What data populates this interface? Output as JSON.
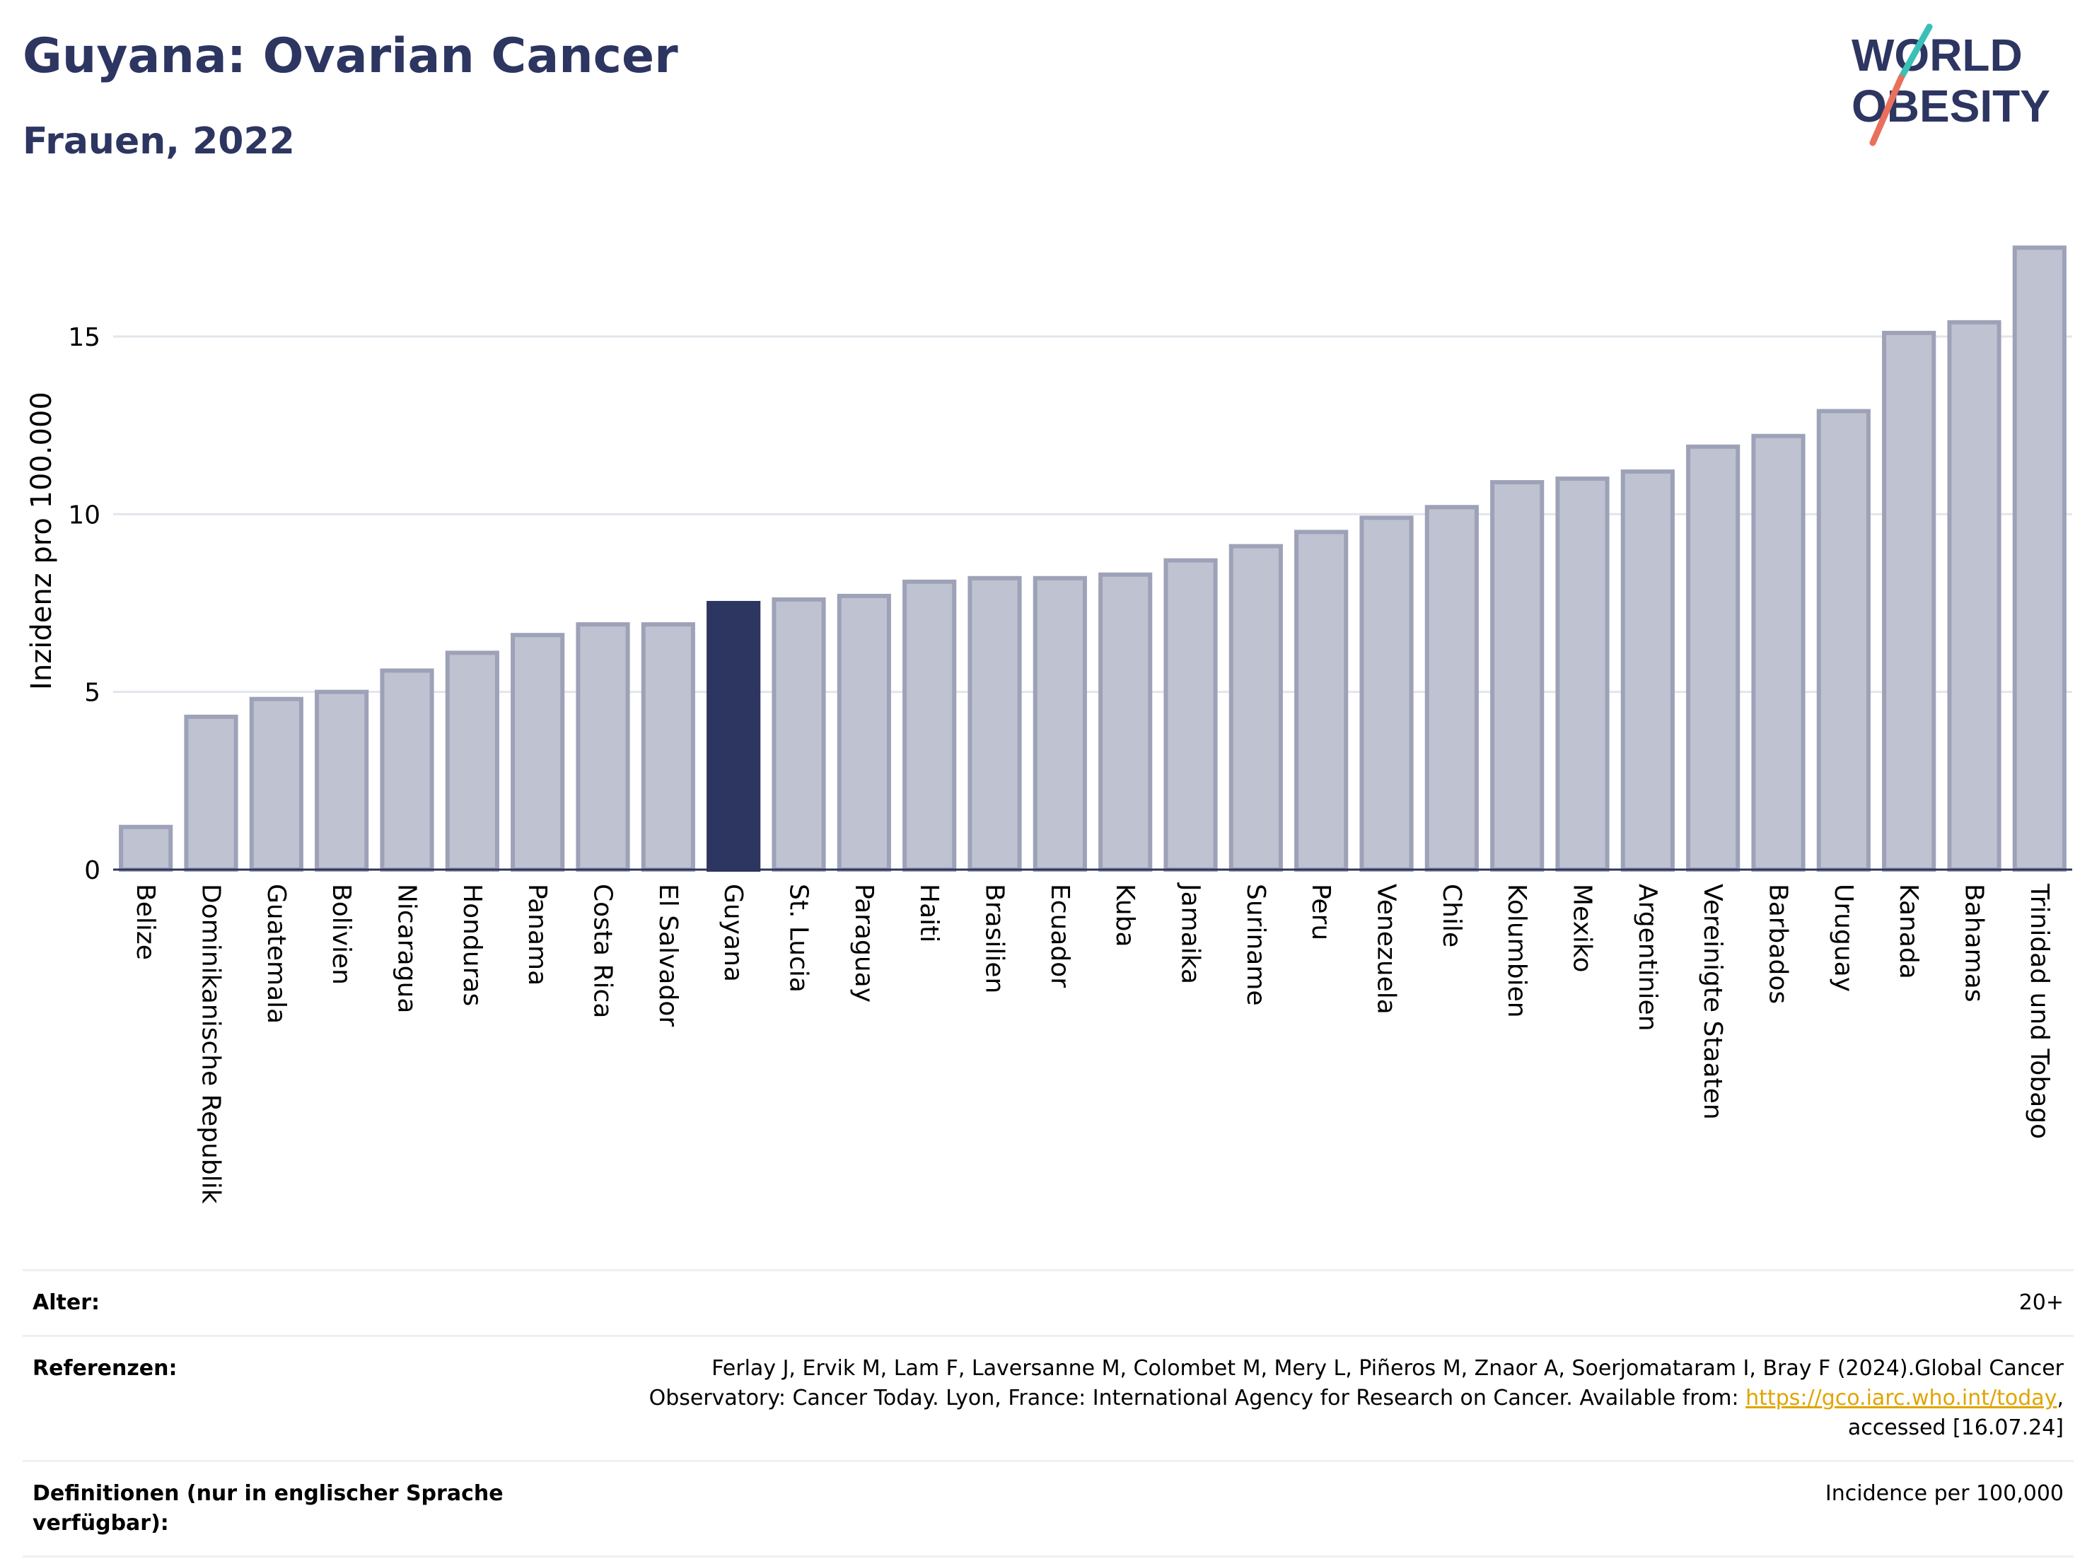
{
  "header": {
    "title": "Guyana: Ovarian Cancer",
    "subtitle": "Frauen, 2022"
  },
  "logo": {
    "line1": "WORLD",
    "line2": "OBESITY",
    "colors": {
      "text": "#2d3561",
      "slash_top": "#3bbfb6",
      "slash_bottom": "#e8705d"
    }
  },
  "colors": {
    "highlight": "#2d3561",
    "bar": "#bfc2d0",
    "bar_border": "#9ea2b8"
  },
  "chart_data": {
    "type": "bar",
    "title": "",
    "xlabel": "",
    "ylabel": "Inzidenz pro 100.000",
    "ylim": [
      0,
      18.5
    ],
    "yticks": [
      0,
      5,
      10,
      15
    ],
    "grid": true,
    "highlight": "Guyana",
    "categories": [
      "Belize",
      "Dominikanische Republik",
      "Guatemala",
      "Bolivien",
      "Nicaragua",
      "Honduras",
      "Panama",
      "Costa Rica",
      "El Salvador",
      "Guyana",
      "St. Lucia",
      "Paraguay",
      "Haiti",
      "Brasilien",
      "Ecuador",
      "Kuba",
      "Jamaika",
      "Suriname",
      "Peru",
      "Venezuela",
      "Chile",
      "Kolumbien",
      "Mexiko",
      "Argentinien",
      "Vereinigte Staaten",
      "Barbados",
      "Uruguay",
      "Kanada",
      "Bahamas",
      "Trinidad und Tobago"
    ],
    "values": [
      1.2,
      4.3,
      4.8,
      5.0,
      5.6,
      6.1,
      6.6,
      6.9,
      6.9,
      7.5,
      7.6,
      7.7,
      8.1,
      8.2,
      8.2,
      8.3,
      8.7,
      9.1,
      9.5,
      9.9,
      10.2,
      10.9,
      11.0,
      11.2,
      11.9,
      12.2,
      12.9,
      15.1,
      15.4,
      17.5
    ]
  },
  "meta": {
    "age_label": "Alter:",
    "age_value": "20+",
    "ref_label": "Referenzen:",
    "ref_text_before": "Ferlay J, Ervik M, Lam F, Laversanne M, Colombet M, Mery L, Piñeros M, Znaor A, Soerjomataram I, Bray F (2024).Global Cancer Observatory: Cancer Today. Lyon, France: International Agency for Research on Cancer. Available from: ",
    "ref_link": "https://gco.iarc.who.int/today",
    "ref_text_after": ", accessed [16.07.24]",
    "def_label": "Definitionen (nur in englischer Sprache verfügbar):",
    "def_value": "Incidence per 100,000"
  }
}
